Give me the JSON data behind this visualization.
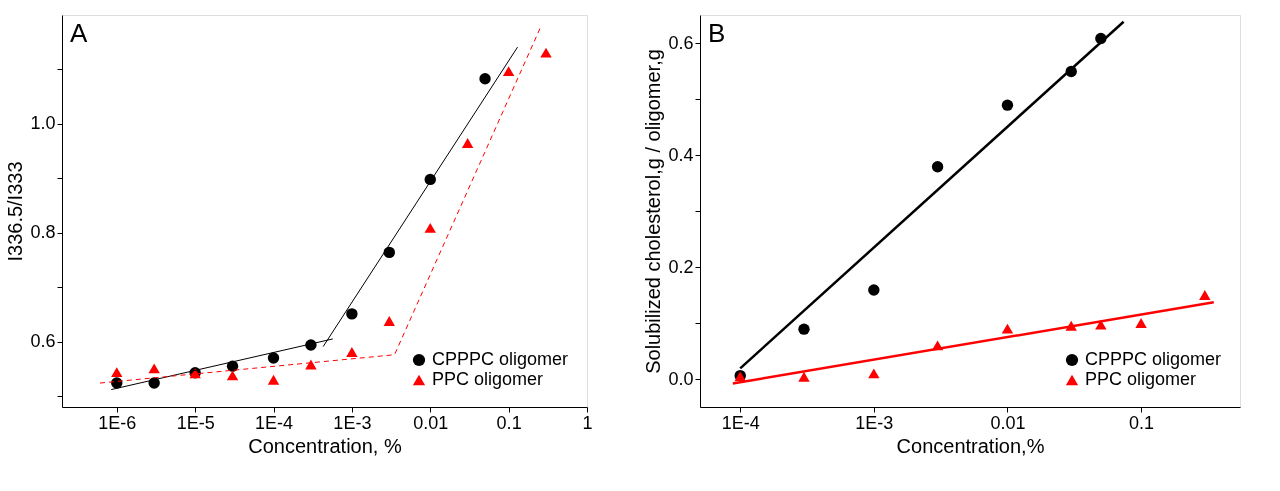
{
  "chart_data": [
    {
      "type": "scatter",
      "xlabel": "Concentration, %",
      "ylabel": "I336.5/I333",
      "annotations": [
        "A"
      ],
      "log": "x",
      "grid": false,
      "legend": "bottom right",
      "xlim": [
        2e-07,
        1
      ],
      "ylim": [
        0.48,
        1.2
      ],
      "xticks": [
        {
          "value": 1e-06,
          "label": "1E-6"
        },
        {
          "value": 1e-05,
          "label": "1E-5"
        },
        {
          "value": 0.0001,
          "label": "1E-4"
        },
        {
          "value": 0.001,
          "label": "1E-3"
        },
        0.01,
        0.1,
        1
      ],
      "yticks": [
        {
          "value": 0.5,
          "label": null
        },
        0.6,
        {
          "value": 0.7,
          "label": null
        },
        0.8,
        {
          "value": 0.9,
          "label": null
        },
        {
          "value": 1.0,
          "label": "1.0"
        },
        {
          "value": 1.1,
          "label": null
        }
      ],
      "series": [
        {
          "name": "CPPPC oligomer",
          "color": "#000000",
          "marker": "circle",
          "x": [
            1e-06,
            3e-06,
            1e-05,
            3e-05,
            0.0001,
            0.0003,
            0.001,
            0.003,
            0.01,
            0.05
          ],
          "values": [
            0.524,
            0.524,
            0.543,
            0.555,
            0.57,
            0.594,
            0.651,
            0.764,
            0.898,
            1.083
          ]
        },
        {
          "name": "PPC oligomer",
          "color": "#ff0000",
          "marker": "triangle",
          "x": [
            1e-06,
            3e-06,
            1e-05,
            3e-05,
            0.0001,
            0.0003,
            0.001,
            0.003,
            0.01,
            0.03,
            0.1,
            0.3
          ],
          "values": [
            0.544,
            0.551,
            0.542,
            0.538,
            0.53,
            0.558,
            0.581,
            0.638,
            0.809,
            0.965,
            1.097,
            1.131
          ]
        },
        {
          "type": "line",
          "color": "#000000",
          "line_style": "solid",
          "x": [
            8.5e-07,
            0.00057
          ],
          "values": [
            0.512,
            0.605
          ]
        },
        {
          "type": "line",
          "color": "#000000",
          "line_style": "solid",
          "x": [
            0.00043,
            0.13
          ],
          "values": [
            0.591,
            1.141
          ]
        },
        {
          "type": "line",
          "color": "#ff0000",
          "line_style": "dashed",
          "x": [
            6.1e-07,
            0.0035,
            0.26
          ],
          "values": [
            0.524,
            0.576,
            1.18
          ]
        }
      ]
    },
    {
      "type": "scatter",
      "xlabel": "Concentration,%",
      "ylabel": "Solubilized cholesterol,g / oligomer,g",
      "annotations": [
        "B"
      ],
      "log": "x",
      "grid": false,
      "legend": "bottom right",
      "xlim": [
        5e-05,
        0.55
      ],
      "ylim": [
        -0.05,
        0.65
      ],
      "xticks": [
        {
          "value": 0.0001,
          "label": "1E-4"
        },
        {
          "value": 0.001,
          "label": "1E-3"
        },
        0.01,
        0.1
      ],
      "yticks": [
        {
          "value": 0.0,
          "label": "0.0"
        },
        {
          "value": 0.1,
          "label": null
        },
        0.2,
        {
          "value": 0.3,
          "label": null
        },
        0.4,
        {
          "value": 0.5,
          "label": null
        },
        0.6
      ],
      "series": [
        {
          "name": "CPPPC oligomer",
          "color": "#000000",
          "marker": "circle",
          "x": [
            0.0001,
            0.0003,
            0.001,
            0.003,
            0.01,
            0.03,
            0.05
          ],
          "values": [
            0.006,
            0.089,
            0.159,
            0.379,
            0.489,
            0.549,
            0.608
          ]
        },
        {
          "name": "PPC oligomer",
          "color": "#ff0000",
          "marker": "triangle",
          "x": [
            0.0001,
            0.0003,
            0.001,
            0.003,
            0.01,
            0.03,
            0.05,
            0.1,
            0.3
          ],
          "values": [
            0.005,
            0.004,
            0.01,
            0.06,
            0.09,
            0.095,
            0.097,
            0.1,
            0.15
          ]
        },
        {
          "type": "line",
          "color": "#000000",
          "line_style": "solid",
          "x": [
            0.0001,
            0.074
          ],
          "values": [
            0.019,
            0.638
          ]
        },
        {
          "type": "line",
          "color": "#ff0000",
          "line_style": "solid",
          "x": [
            8.8e-05,
            0.35
          ],
          "values": [
            -0.008,
            0.137
          ]
        }
      ]
    }
  ]
}
